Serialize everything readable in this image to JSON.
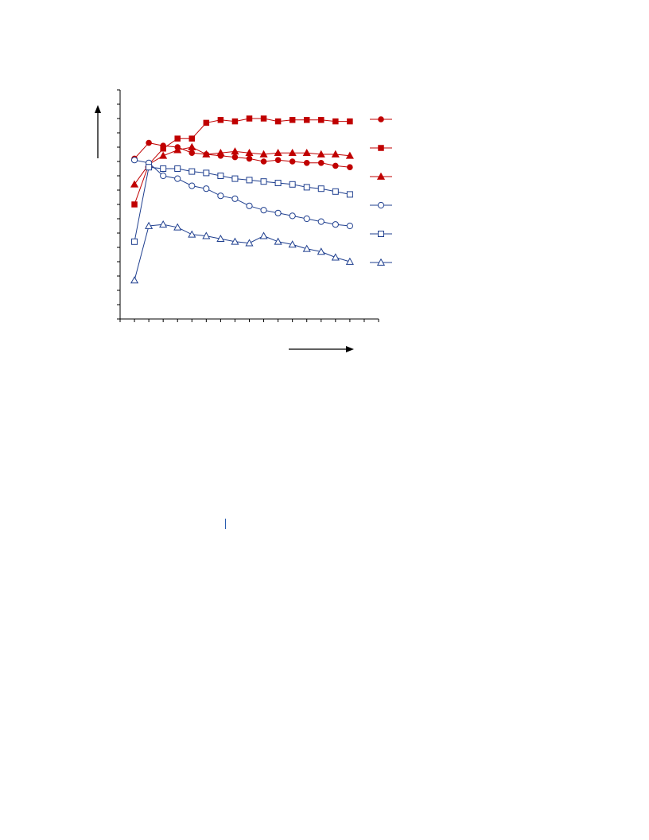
{
  "chart_data": {
    "type": "line",
    "title": "",
    "xlabel": "",
    "ylabel": "",
    "x": [
      1,
      2,
      3,
      4,
      5,
      6,
      7,
      8,
      9,
      10,
      11,
      12,
      13,
      14,
      15,
      16
    ],
    "xlim": [
      0,
      18
    ],
    "ylim": [
      0,
      16
    ],
    "x_ticks": [
      0,
      1,
      2,
      3,
      4,
      5,
      6,
      7,
      8,
      9,
      10,
      11,
      12,
      13,
      14,
      15,
      16,
      17,
      18
    ],
    "y_ticks": [
      0,
      1,
      2,
      3,
      4,
      5,
      6,
      7,
      8,
      9,
      10,
      11,
      12,
      13,
      14,
      15,
      16
    ],
    "grid": false,
    "legend_position": "right",
    "axis_direction_arrows": true,
    "series": [
      {
        "marker": "circle",
        "filled": true,
        "color": "#c00000",
        "values": [
          11.2,
          12.3,
          12.1,
          12.0,
          11.6,
          11.5,
          11.4,
          11.3,
          11.2,
          11.0,
          11.1,
          11.0,
          10.9,
          10.9,
          10.7,
          10.6
        ]
      },
      {
        "marker": "square",
        "filled": true,
        "color": "#c00000",
        "values": [
          8.0,
          10.8,
          11.9,
          12.6,
          12.6,
          13.7,
          13.9,
          13.8,
          14.0,
          14.0,
          13.8,
          13.9,
          13.9,
          13.9,
          13.8,
          13.8
        ]
      },
      {
        "marker": "triangle",
        "filled": true,
        "color": "#c00000",
        "values": [
          9.4,
          10.8,
          11.4,
          11.8,
          12.0,
          11.5,
          11.6,
          11.7,
          11.6,
          11.5,
          11.6,
          11.6,
          11.6,
          11.5,
          11.5,
          11.4
        ]
      },
      {
        "marker": "circle",
        "filled": false,
        "color": "#1f3f8f",
        "values": [
          11.1,
          10.9,
          10.0,
          9.8,
          9.3,
          9.1,
          8.6,
          8.4,
          7.9,
          7.6,
          7.4,
          7.2,
          7.0,
          6.8,
          6.6,
          6.5
        ]
      },
      {
        "marker": "square",
        "filled": false,
        "color": "#1f3f8f",
        "values": [
          5.4,
          10.6,
          10.5,
          10.5,
          10.3,
          10.2,
          10.0,
          9.8,
          9.7,
          9.6,
          9.5,
          9.4,
          9.2,
          9.1,
          8.9,
          8.7
        ]
      },
      {
        "marker": "triangle",
        "filled": false,
        "color": "#1f3f8f",
        "values": [
          2.7,
          6.5,
          6.6,
          6.4,
          5.9,
          5.8,
          5.6,
          5.4,
          5.3,
          5.8,
          5.4,
          5.2,
          4.9,
          4.7,
          4.3,
          4.0
        ]
      }
    ]
  }
}
